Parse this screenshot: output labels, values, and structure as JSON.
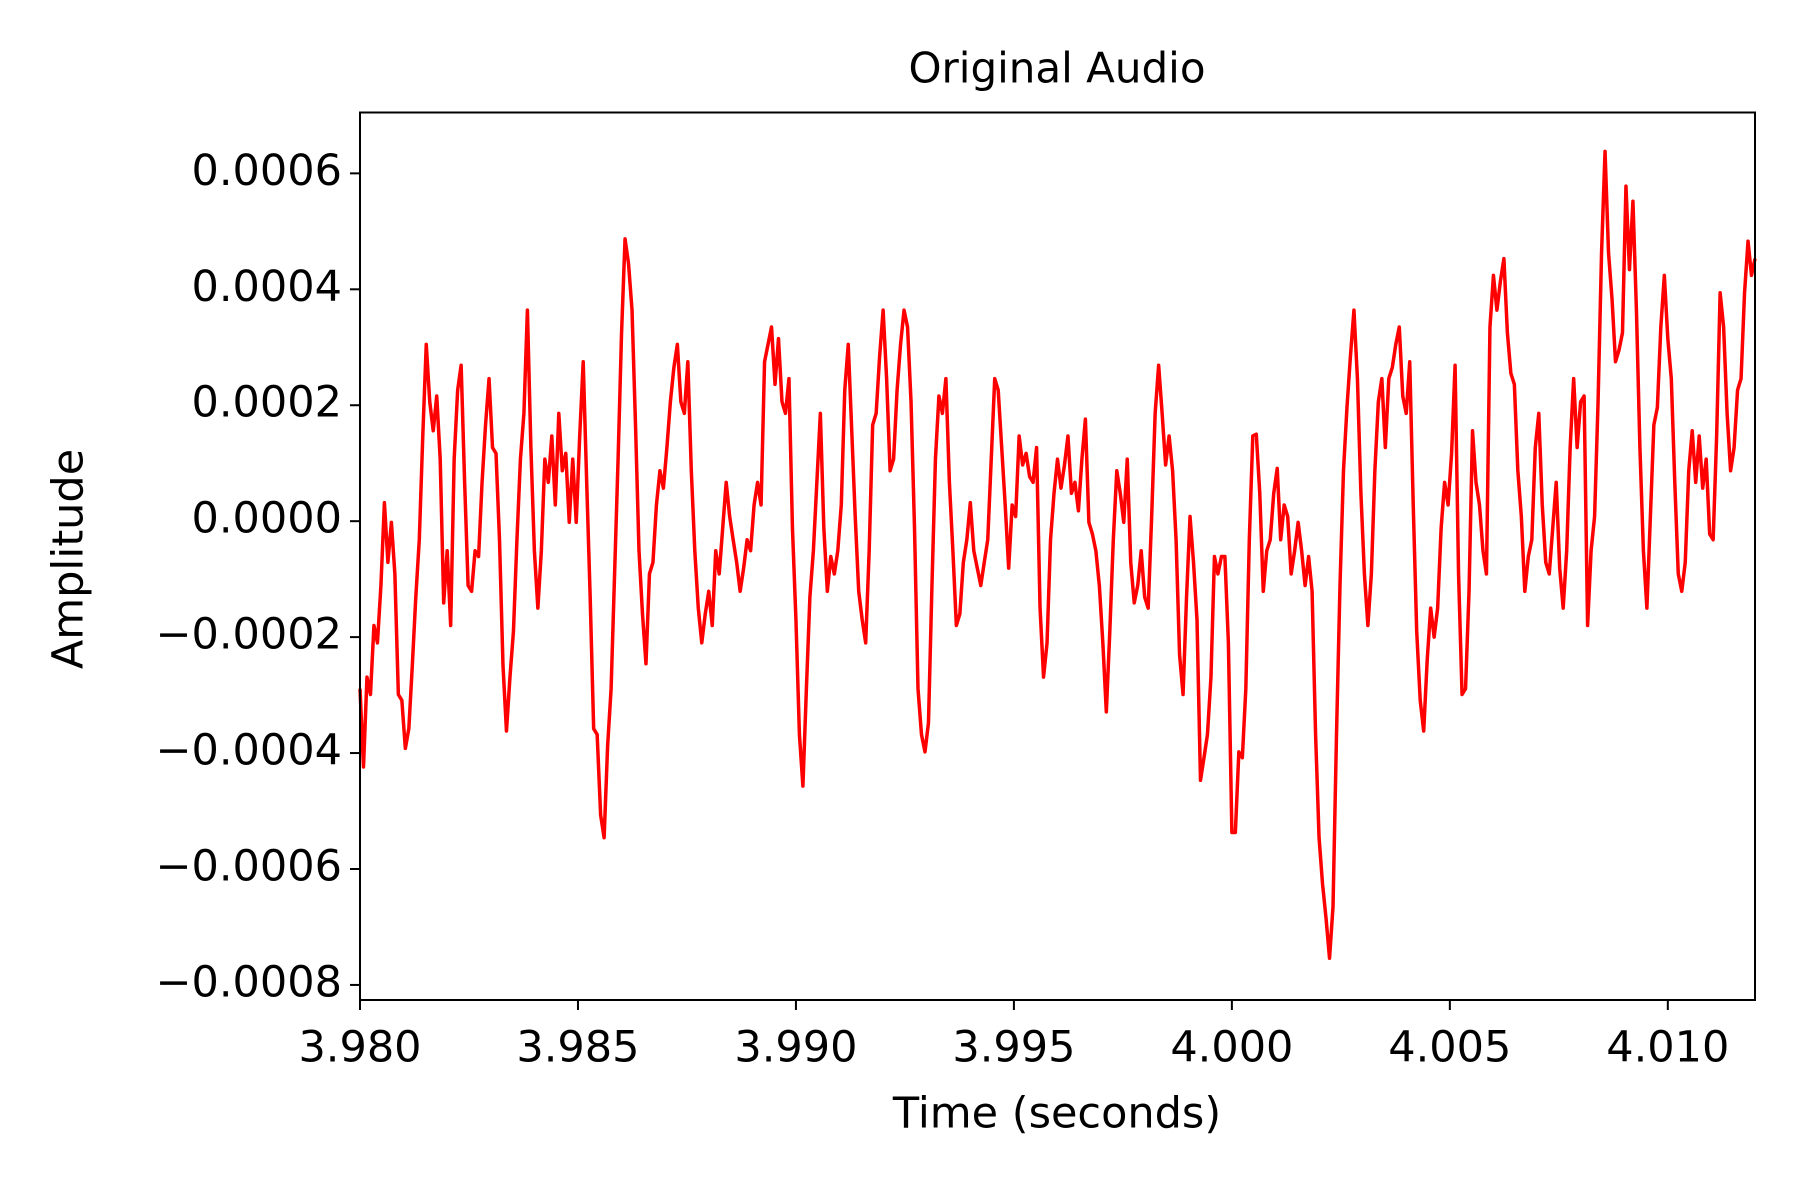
{
  "chart_data": {
    "type": "line",
    "title": "Original Audio",
    "x_label": "Time (seconds)",
    "y_label": "Amplitude",
    "xlim": [
      3.98,
      4.012
    ],
    "ylim": [
      -0.000826,
      0.000705
    ],
    "xticks": [
      {
        "value": 3.98,
        "label": "3.980"
      },
      3.985,
      {
        "value": 3.99,
        "label": "3.990"
      },
      3.995,
      {
        "value": 4.0,
        "label": "4.000"
      },
      4.005,
      {
        "value": 4.01,
        "label": "4.010"
      }
    ],
    "yticks": [
      {
        "value": -0.0008,
        "label": "−0.0008"
      },
      {
        "value": -0.0006,
        "label": "−0.0006"
      },
      {
        "value": -0.0004,
        "label": "−0.0004"
      },
      {
        "value": -0.0002,
        "label": "−0.0002"
      },
      {
        "value": 0,
        "label": "0.0000"
      },
      0.0002,
      0.0004,
      0.0006
    ],
    "grid": false,
    "x": [
      3.98,
      3.98008,
      3.98016,
      3.98024,
      3.98032,
      3.9804,
      3.98048,
      3.98056,
      3.98064,
      3.98072,
      3.9808,
      3.98088,
      3.98096,
      3.98104,
      3.98112,
      3.9812,
      3.98128,
      3.98136,
      3.98144,
      3.98152,
      3.9816,
      3.98168,
      3.98176,
      3.98184,
      3.98192,
      3.982,
      3.98208,
      3.98216,
      3.98224,
      3.98232,
      3.9824,
      3.98248,
      3.98256,
      3.98264,
      3.98272,
      3.9828,
      3.98288,
      3.98296,
      3.98304,
      3.98312,
      3.9832,
      3.98328,
      3.98336,
      3.98344,
      3.98352,
      3.9836,
      3.98368,
      3.98376,
      3.98384,
      3.98392,
      3.984,
      3.98408,
      3.98416,
      3.98424,
      3.98432,
      3.9844,
      3.98448,
      3.98456,
      3.98464,
      3.98472,
      3.9848,
      3.98488,
      3.98496,
      3.98504,
      3.98512,
      3.9852,
      3.98528,
      3.98536,
      3.98544,
      3.98552,
      3.9856,
      3.98568,
      3.98576,
      3.98584,
      3.98592,
      3.986,
      3.98608,
      3.98616,
      3.98624,
      3.98632,
      3.9864,
      3.98648,
      3.98656,
      3.98664,
      3.98672,
      3.9868,
      3.98688,
      3.98696,
      3.98704,
      3.98712,
      3.9872,
      3.98728,
      3.98736,
      3.98744,
      3.98752,
      3.9876,
      3.98768,
      3.98776,
      3.98784,
      3.98792,
      3.988,
      3.98808,
      3.98816,
      3.98824,
      3.98832,
      3.9884,
      3.98848,
      3.98856,
      3.98864,
      3.98872,
      3.9888,
      3.98888,
      3.98896,
      3.98904,
      3.98912,
      3.9892,
      3.98928,
      3.98936,
      3.98944,
      3.98952,
      3.9896,
      3.98968,
      3.98976,
      3.98984,
      3.98992,
      3.99,
      3.99008,
      3.99016,
      3.99024,
      3.99032,
      3.9904,
      3.99048,
      3.99056,
      3.99064,
      3.99072,
      3.9908,
      3.99088,
      3.99096,
      3.99104,
      3.99112,
      3.9912,
      3.99128,
      3.99136,
      3.99144,
      3.99152,
      3.9916,
      3.99168,
      3.99176,
      3.99184,
      3.99192,
      3.992,
      3.99208,
      3.99216,
      3.99224,
      3.99232,
      3.9924,
      3.99248,
      3.99256,
      3.99264,
      3.99272,
      3.9928,
      3.99288,
      3.99296,
      3.99304,
      3.99312,
      3.9932,
      3.99328,
      3.99336,
      3.99344,
      3.99352,
      3.9936,
      3.99368,
      3.99376,
      3.99384,
      3.99392,
      3.994,
      3.99408,
      3.99416,
      3.99424,
      3.99432,
      3.9944,
      3.99448,
      3.99456,
      3.99464,
      3.99472,
      3.9948,
      3.99488,
      3.99496,
      3.99504,
      3.99512,
      3.9952,
      3.99528,
      3.99536,
      3.99544,
      3.99552,
      3.9956,
      3.99568,
      3.99576,
      3.99584,
      3.99592,
      3.996,
      3.99608,
      3.99616,
      3.99624,
      3.99632,
      3.9964,
      3.99648,
      3.99656,
      3.99664,
      3.99672,
      3.9968,
      3.99688,
      3.99696,
      3.99704,
      3.99712,
      3.9972,
      3.99728,
      3.99736,
      3.99744,
      3.99752,
      3.9976,
      3.99768,
      3.99776,
      3.99784,
      3.99792,
      3.998,
      3.99808,
      3.99816,
      3.99824,
      3.99832,
      3.9984,
      3.99848,
      3.99856,
      3.99864,
      3.99872,
      3.9988,
      3.99888,
      3.99896,
      3.99904,
      3.99912,
      3.9992,
      3.99928,
      3.99936,
      3.99944,
      3.99952,
      3.9996,
      3.99968,
      3.99976,
      3.99984,
      3.99992,
      4.0,
      4.00008,
      4.00016,
      4.00024,
      4.00032,
      4.0004,
      4.00048,
      4.00056,
      4.00064,
      4.00072,
      4.0008,
      4.00088,
      4.00096,
      4.00104,
      4.00112,
      4.0012,
      4.00128,
      4.00136,
      4.00144,
      4.00152,
      4.0016,
      4.00168,
      4.00176,
      4.00184,
      4.00192,
      4.002,
      4.00208,
      4.00216,
      4.00224,
      4.00232,
      4.0024,
      4.00248,
      4.00256,
      4.00264,
      4.00272,
      4.0028,
      4.00288,
      4.00296,
      4.00304,
      4.00312,
      4.0032,
      4.00328,
      4.00336,
      4.00344,
      4.00352,
      4.0036,
      4.00368,
      4.00376,
      4.00384,
      4.00392,
      4.004,
      4.00408,
      4.00416,
      4.00424,
      4.00432,
      4.0044,
      4.00448,
      4.00456,
      4.00464,
      4.00472,
      4.0048,
      4.00488,
      4.00496,
      4.00504,
      4.00512,
      4.0052,
      4.00528,
      4.00536,
      4.00544,
      4.00552,
      4.0056,
      4.00568,
      4.00576,
      4.00584,
      4.00592,
      4.006,
      4.00608,
      4.00616,
      4.00624,
      4.00632,
      4.0064,
      4.00648,
      4.00656,
      4.00664,
      4.00672,
      4.0068,
      4.00688,
      4.00696,
      4.00704,
      4.00712,
      4.0072,
      4.00728,
      4.00736,
      4.00744,
      4.00752,
      4.0076,
      4.00768,
      4.00776,
      4.00784,
      4.00792,
      4.008,
      4.00808,
      4.00816,
      4.00824,
      4.00832,
      4.0084,
      4.00848,
      4.00856,
      4.00864,
      4.00872,
      4.0088,
      4.00888,
      4.00896,
      4.00904,
      4.00912,
      4.0092,
      4.00928,
      4.00936,
      4.00944,
      4.00952,
      4.0096,
      4.00968,
      4.00976,
      4.00984,
      4.00992,
      4.01,
      4.01008,
      4.01016,
      4.01024,
      4.01032,
      4.0104,
      4.01048,
      4.01056,
      4.01064,
      4.01072,
      4.0108,
      4.01088,
      4.01096,
      4.01104,
      4.01112,
      4.0112,
      4.01128,
      4.01136,
      4.01144,
      4.01152,
      4.0116,
      4.01168,
      4.01176,
      4.01184,
      4.01192,
      4.012
    ],
    "series": [
      {
        "color": "#ff0000",
        "values": [
          -0.000289,
          -0.000424,
          -0.000269,
          -0.000299,
          -0.00018,
          -0.00021,
          -0.000111,
          3.2e-05,
          -7.1e-05,
          -2e-06,
          -9.1e-05,
          -0.000299,
          -0.000309,
          -0.000392,
          -0.000358,
          -0.000249,
          -0.000131,
          -3.2e-05,
          0.000147,
          0.000305,
          0.000206,
          0.000156,
          0.000216,
          0.000107,
          -0.000141,
          -5.1e-05,
          -0.00018,
          0.000107,
          0.000226,
          0.000269,
          6.7e-05,
          -0.000111,
          -0.000121,
          -5.1e-05,
          -6.1e-05,
          6.7e-05,
          0.000166,
          0.000246,
          0.000127,
          0.000117,
          -3.2e-05,
          -0.000249,
          -0.000362,
          -0.000269,
          -0.00019,
          -3.2e-05,
          0.000107,
          0.000186,
          0.000364,
          0.000127,
          -5.1e-05,
          -0.00015,
          -5.1e-05,
          0.000107,
          6.7e-05,
          0.000147,
          2.8e-05,
          0.000186,
          8.7e-05,
          0.000117,
          -2e-06,
          0.000107,
          -2e-06,
          0.000147,
          0.000275,
          6.7e-05,
          -0.000131,
          -0.000358,
          -0.000368,
          -0.000507,
          -0.000546,
          -0.000388,
          -0.000289,
          -9.1e-05,
          0.000107,
          0.000325,
          0.000487,
          0.000444,
          0.000364,
          0.000166,
          -5.1e-05,
          -0.00016,
          -0.000246,
          -9.1e-05,
          -7.1e-05,
          2.8e-05,
          8.7e-05,
          5.7e-05,
          0.000127,
          0.000206,
          0.000265,
          0.000305,
          0.000206,
          0.000186,
          0.000275,
          8.7e-05,
          -5.1e-05,
          -0.00015,
          -0.00021,
          -0.00016,
          -0.000121,
          -0.00018,
          -5.1e-05,
          -9.1e-05,
          -1.2e-05,
          6.7e-05,
          8e-06,
          -3.2e-05,
          -7.1e-05,
          -0.000121,
          -8.1e-05,
          -3.2e-05,
          -5.1e-05,
          2.8e-05,
          6.7e-05,
          2.8e-05,
          0.000275,
          0.000305,
          0.000335,
          0.000236,
          0.000315,
          0.000206,
          0.000186,
          0.000246,
          -1.2e-05,
          -0.00017,
          -0.000368,
          -0.000457,
          -0.000289,
          -0.000131,
          -5.1e-05,
          6.7e-05,
          0.000186,
          -1.2e-05,
          -0.000121,
          -6.1e-05,
          -9.1e-05,
          -5.1e-05,
          2.8e-05,
          0.000226,
          0.000305,
          0.000156,
          8e-06,
          -0.000121,
          -0.00017,
          -0.00021,
          -5.1e-05,
          0.000166,
          0.000186,
          0.000285,
          0.000364,
          0.000246,
          8.7e-05,
          0.000107,
          0.000226,
          0.000305,
          0.000364,
          0.000335,
          0.000206,
          -1.2e-05,
          -0.000289,
          -0.000368,
          -0.000398,
          -0.000348,
          -0.000111,
          0.000107,
          0.000216,
          0.000186,
          0.000246,
          6.7e-05,
          -5.1e-05,
          -0.00018,
          -0.00016,
          -7.1e-05,
          -3.2e-05,
          3.2e-05,
          -5.1e-05,
          -8.1e-05,
          -0.000111,
          -7.1e-05,
          -3.2e-05,
          0.000107,
          0.000246,
          0.000226,
          0.000127,
          2.8e-05,
          -8.1e-05,
          2.8e-05,
          8e-06,
          0.000147,
          9.7e-05,
          0.000117,
          7.7e-05,
          6.7e-05,
          0.000127,
          -0.00015,
          -0.000269,
          -0.00021,
          -3.2e-05,
          4.8e-05,
          0.000107,
          5.7e-05,
          9.7e-05,
          0.000147,
          4.8e-05,
          6.7e-05,
          1.8e-05,
          0.000107,
          0.000176,
          -2e-06,
          -2.2e-05,
          -5.1e-05,
          -0.000111,
          -0.00021,
          -0.000329,
          -0.00019,
          -3.2e-05,
          8.7e-05,
          4.8e-05,
          -2e-06,
          0.000107,
          -7.1e-05,
          -0.000141,
          -0.000111,
          -5.1e-05,
          -0.000131,
          -0.00015,
          8e-06,
          0.000186,
          0.000269,
          0.000186,
          9.7e-05,
          0.000147,
          8.7e-05,
          -3.2e-05,
          -0.00023,
          -0.000299,
          -0.000131,
          8e-06,
          -7.1e-05,
          -0.00017,
          -0.000447,
          -0.000408,
          -0.000368,
          -0.000269,
          -6.1e-05,
          -9.1e-05,
          -6.1e-05,
          -6.1e-05,
          -0.00021,
          -0.000537,
          -0.000537,
          -0.000398,
          -0.000408,
          -0.000289,
          -3.2e-05,
          0.000147,
          0.00015,
          4.8e-05,
          -0.000121,
          -5.1e-05,
          -3.2e-05,
          4.8e-05,
          9.1e-05,
          -3.2e-05,
          2.8e-05,
          8e-06,
          -9.1e-05,
          -5.1e-05,
          -2e-06,
          -5.1e-05,
          -0.000111,
          -6.1e-05,
          -0.000121,
          -0.000368,
          -0.000546,
          -0.000626,
          -0.000685,
          -0.000754,
          -0.000665,
          -0.000368,
          -0.000111,
          8.7e-05,
          0.000196,
          0.000285,
          0.000364,
          0.000246,
          4.8e-05,
          -9.1e-05,
          -0.00018,
          -9.1e-05,
          8.7e-05,
          0.000206,
          0.000246,
          0.000127,
          0.000246,
          0.000265,
          0.000305,
          0.000335,
          0.000216,
          0.000186,
          0.000275,
          2.8e-05,
          -0.00019,
          -0.000309,
          -0.000362,
          -0.00024,
          -0.00015,
          -0.0002,
          -0.00015,
          -1.2e-05,
          6.7e-05,
          2.8e-05,
          0.000117,
          0.000269,
          -9.1e-05,
          -0.000299,
          -0.000289,
          -0.000121,
          0.000156,
          6.7e-05,
          2.8e-05,
          -5.1e-05,
          -9.1e-05,
          0.000335,
          0.000424,
          0.000364,
          0.000414,
          0.000453,
          0.000325,
          0.000255,
          0.000236,
          8.7e-05,
          8e-06,
          -0.000121,
          -6.1e-05,
          -3.2e-05,
          0.000127,
          0.000186,
          2.8e-05,
          -7.1e-05,
          -9.1e-05,
          -1.2e-05,
          6.7e-05,
          -8.1e-05,
          -0.00015,
          -5.1e-05,
          0.000127,
          0.000246,
          0.000127,
          0.000206,
          0.000216,
          -0.00018,
          -5.1e-05,
          8e-06,
          0.000206,
          0.000463,
          0.000638,
          0.000463,
          0.000384,
          0.000275,
          0.000295,
          0.000325,
          0.000578,
          0.000434,
          0.000552,
          0.000364,
          0.000127,
          -5.1e-05,
          -0.00015,
          8e-06,
          0.000166,
          0.000196,
          0.000335,
          0.000424,
          0.000315,
          0.000246,
          6.7e-05,
          -9.1e-05,
          -0.000121,
          -7.1e-05,
          8.7e-05,
          0.000156,
          6.7e-05,
          0.000147,
          5.7e-05,
          0.000107,
          -2.2e-05,
          -3.2e-05,
          0.000147,
          0.000394,
          0.000335,
          0.000186,
          8.7e-05,
          0.000127,
          0.000226,
          0.000246,
          0.000394,
          0.000483,
          0.000424,
          0.000453
        ]
      }
    ]
  }
}
